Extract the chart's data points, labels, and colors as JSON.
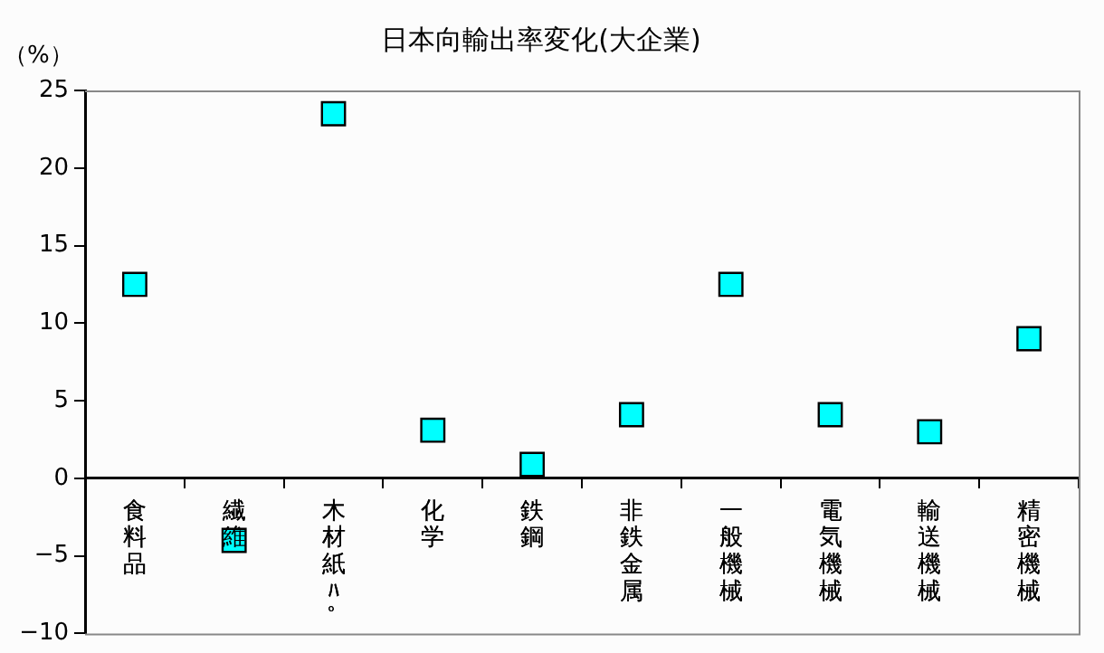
{
  "chart_data": {
    "type": "scatter",
    "title": "日本向輸出率変化(大企業)",
    "ylabel": "（%）",
    "categories": [
      "食料品",
      "繊維",
      "木材紙ﾊﾟ",
      "化学",
      "鉄鋼",
      "非鉄金属",
      "一般機械",
      "電気機械",
      "輸送機械",
      "精密機械"
    ],
    "series": [
      {
        "color": "#00ffff",
        "values": [
          12.5,
          -4.0,
          23.5,
          3.1,
          0.9,
          4.1,
          12.5,
          4.1,
          3.0,
          9.0
        ]
      }
    ],
    "ylim": [
      -10,
      25
    ],
    "yticks": [
      -10,
      -5,
      0,
      5,
      10,
      15,
      20,
      25
    ],
    "marker": "square",
    "legend": false
  }
}
